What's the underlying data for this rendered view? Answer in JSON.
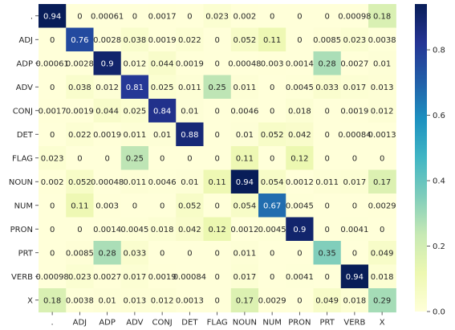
{
  "chart_data": {
    "type": "heatmap",
    "title": "",
    "xlabel": "",
    "ylabel": "",
    "row_labels": [
      ".",
      "ADJ",
      "ADP",
      "ADV",
      "CONJ",
      "DET",
      "FLAG",
      "NOUN",
      "NUM",
      "PRON",
      "PRT",
      "VERB",
      "X"
    ],
    "col_labels": [
      ".",
      "ADJ",
      "ADP",
      "ADV",
      "CONJ",
      "DET",
      "FLAG",
      "NOUN",
      "NUM",
      "PRON",
      "PRT",
      "VERB",
      "X"
    ],
    "values": [
      [
        0.94,
        0,
        0.00061,
        0,
        0.0017,
        0,
        0.023,
        0.002,
        0,
        0,
        0,
        0.00098,
        0.18
      ],
      [
        0,
        0.76,
        0.0028,
        0.038,
        0.0019,
        0.022,
        0,
        0.052,
        0.11,
        0,
        0.0085,
        0.023,
        0.0038
      ],
      [
        0.00061,
        0.0028,
        0.9,
        0.012,
        0.044,
        0.0019,
        0,
        0.00048,
        0.003,
        0.0014,
        0.28,
        0.0027,
        0.01
      ],
      [
        0,
        0.038,
        0.012,
        0.81,
        0.025,
        0.011,
        0.25,
        0.011,
        0,
        0.0045,
        0.033,
        0.017,
        0.013
      ],
      [
        0.0017,
        0.0019,
        0.044,
        0.025,
        0.84,
        0.01,
        0,
        0.0046,
        0,
        0.018,
        0,
        0.0019,
        0.012
      ],
      [
        0,
        0.022,
        0.0019,
        0.011,
        0.01,
        0.88,
        0,
        0.01,
        0.052,
        0.042,
        0,
        0.00084,
        0.0013
      ],
      [
        0.023,
        0,
        0,
        0.25,
        0,
        0,
        0,
        0.11,
        0,
        0.12,
        0,
        0,
        0
      ],
      [
        0.002,
        0.052,
        0.00048,
        0.011,
        0.0046,
        0.01,
        0.11,
        0.94,
        0.054,
        0.0012,
        0.011,
        0.017,
        0.17
      ],
      [
        0,
        0.11,
        0.003,
        0,
        0,
        0.052,
        0,
        0.054,
        0.67,
        0.0045,
        0,
        0,
        0.0029
      ],
      [
        0,
        0,
        0.0014,
        0.0045,
        0.018,
        0.042,
        0.12,
        0.0012,
        0.0045,
        0.9,
        0,
        0.0041,
        0
      ],
      [
        0,
        0.0085,
        0.28,
        0.033,
        0,
        0,
        0,
        0.011,
        0,
        0,
        0.35,
        0,
        0.049
      ],
      [
        0.00098,
        0.023,
        0.0027,
        0.017,
        0.0019,
        0.00084,
        0,
        0.017,
        0,
        0.0041,
        0,
        0.94,
        0.018
      ],
      [
        0.18,
        0.0038,
        0.01,
        0.013,
        0.012,
        0.0013,
        0,
        0.17,
        0.0029,
        0,
        0.049,
        0.018,
        0.29
      ]
    ],
    "colorbar": {
      "min": 0,
      "max": 0.94,
      "ticks": [
        0.0,
        0.2,
        0.4,
        0.6,
        0.8
      ],
      "tick_labels": [
        "0.0",
        "0.2",
        "0.4",
        "0.6",
        "0.8"
      ]
    },
    "colormap": "YlGnBu",
    "colormap_stops": [
      "#ffffd9",
      "#edf8b1",
      "#c7e9b4",
      "#7fcdbb",
      "#41b6c4",
      "#1d91c0",
      "#225ea8",
      "#253494",
      "#081d58"
    ]
  }
}
